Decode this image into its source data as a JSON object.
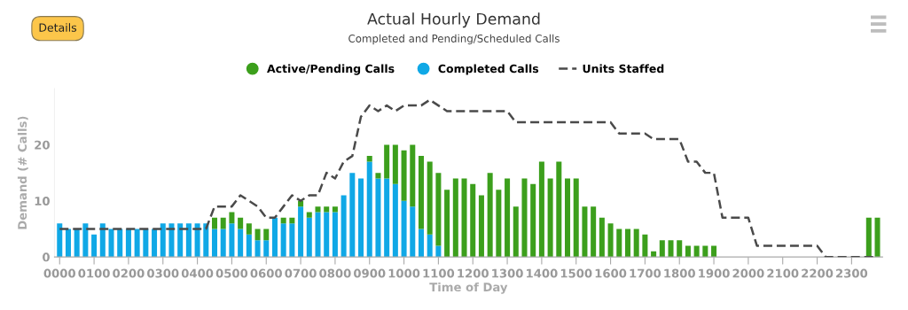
{
  "chart_data": {
    "type": "bar",
    "title": "Actual Hourly Demand",
    "subtitle": "Completed and Pending/Scheduled Calls",
    "xlabel": "Time of Day",
    "ylabel": "Demand (# Calls)",
    "annotations": [
      "Details"
    ],
    "categories": [
      "0000",
      null,
      null,
      null,
      "0100",
      null,
      null,
      null,
      "0200",
      null,
      null,
      null,
      "0300",
      null,
      null,
      null,
      "0400",
      null,
      null,
      null,
      "0500",
      null,
      null,
      null,
      "0600",
      null,
      null,
      null,
      "0700",
      null,
      null,
      null,
      "0800",
      null,
      null,
      null,
      "0900",
      null,
      null,
      null,
      "1000",
      null,
      null,
      null,
      "1100",
      null,
      null,
      null,
      "1200",
      null,
      null,
      null,
      "1300",
      null,
      null,
      null,
      "1400",
      null,
      null,
      null,
      "1500",
      null,
      null,
      null,
      "1600",
      null,
      null,
      null,
      "1700",
      null,
      null,
      null,
      "1800",
      null,
      null,
      null,
      "1900",
      null,
      null,
      null,
      "2000",
      null,
      null,
      null,
      "2100",
      null,
      null,
      null,
      "2200",
      null,
      null,
      null,
      "2300",
      null,
      null,
      null
    ],
    "stacked": true,
    "ylim": [
      0,
      30
    ],
    "yticks": [
      0,
      10,
      20
    ],
    "grid": false,
    "legend": "top",
    "series": [
      {
        "name": "Completed Calls",
        "color": "#10a8e6",
        "values": [
          6,
          5,
          5,
          6,
          4,
          6,
          5,
          5,
          5,
          5,
          5,
          5,
          6,
          6,
          6,
          6,
          6,
          6,
          5,
          5,
          6,
          5,
          4,
          3,
          3,
          7,
          6,
          6,
          9,
          7,
          8,
          8,
          8,
          11,
          15,
          14,
          17,
          14,
          14,
          13,
          10,
          9,
          5,
          4,
          2,
          null,
          null,
          null,
          null,
          null,
          null,
          null,
          null,
          null,
          null,
          null,
          null,
          null,
          null,
          null,
          null,
          null,
          null,
          null,
          null,
          null,
          null,
          null,
          null,
          null,
          null,
          null,
          null,
          null,
          null,
          null,
          null,
          null,
          null,
          null,
          null,
          null,
          null,
          null,
          null,
          null,
          null,
          null,
          null,
          null,
          null,
          null,
          null,
          null,
          null,
          null
        ]
      },
      {
        "name": "Active/Pending Calls",
        "color": "#3c9f1c",
        "values": [
          null,
          null,
          null,
          null,
          null,
          null,
          null,
          null,
          null,
          null,
          null,
          null,
          null,
          null,
          null,
          null,
          null,
          null,
          2,
          2,
          2,
          2,
          2,
          2,
          2,
          null,
          1,
          1,
          1,
          1,
          1,
          1,
          1,
          null,
          null,
          null,
          1,
          1,
          6,
          7,
          9,
          11,
          13,
          13,
          13,
          12,
          14,
          14,
          13,
          11,
          15,
          12,
          14,
          9,
          14,
          13,
          17,
          14,
          17,
          14,
          14,
          9,
          9,
          7,
          6,
          5,
          5,
          5,
          4,
          1,
          3,
          3,
          3,
          2,
          2,
          2,
          2,
          null,
          null,
          null,
          null,
          null,
          null,
          null,
          null,
          null,
          null,
          null,
          null,
          null,
          null,
          null,
          null,
          null,
          7,
          7
        ]
      },
      {
        "name": "Units Staffed",
        "type": "line",
        "line_style": "dashed",
        "marker": "none",
        "color": "#4a4a4a",
        "values": [
          5,
          5,
          5,
          5,
          5,
          5,
          5,
          5,
          5,
          5,
          5,
          5,
          5,
          5,
          5,
          5,
          5,
          5,
          9,
          9,
          9,
          11,
          10,
          9,
          7,
          7,
          9,
          11,
          10,
          11,
          11,
          15,
          14,
          17,
          18,
          25,
          27,
          26,
          27,
          26,
          27,
          27,
          27,
          28,
          27,
          26,
          26,
          26,
          26,
          26,
          26,
          26,
          26,
          24,
          24,
          24,
          24,
          24,
          24,
          24,
          24,
          24,
          24,
          24,
          24,
          22,
          22,
          22,
          22,
          21,
          21,
          21,
          21,
          17,
          17,
          15,
          15,
          7,
          7,
          7,
          7,
          2,
          2,
          2,
          2,
          2,
          2,
          2,
          2,
          0,
          0,
          0,
          0,
          0,
          0,
          0
        ]
      }
    ]
  }
}
